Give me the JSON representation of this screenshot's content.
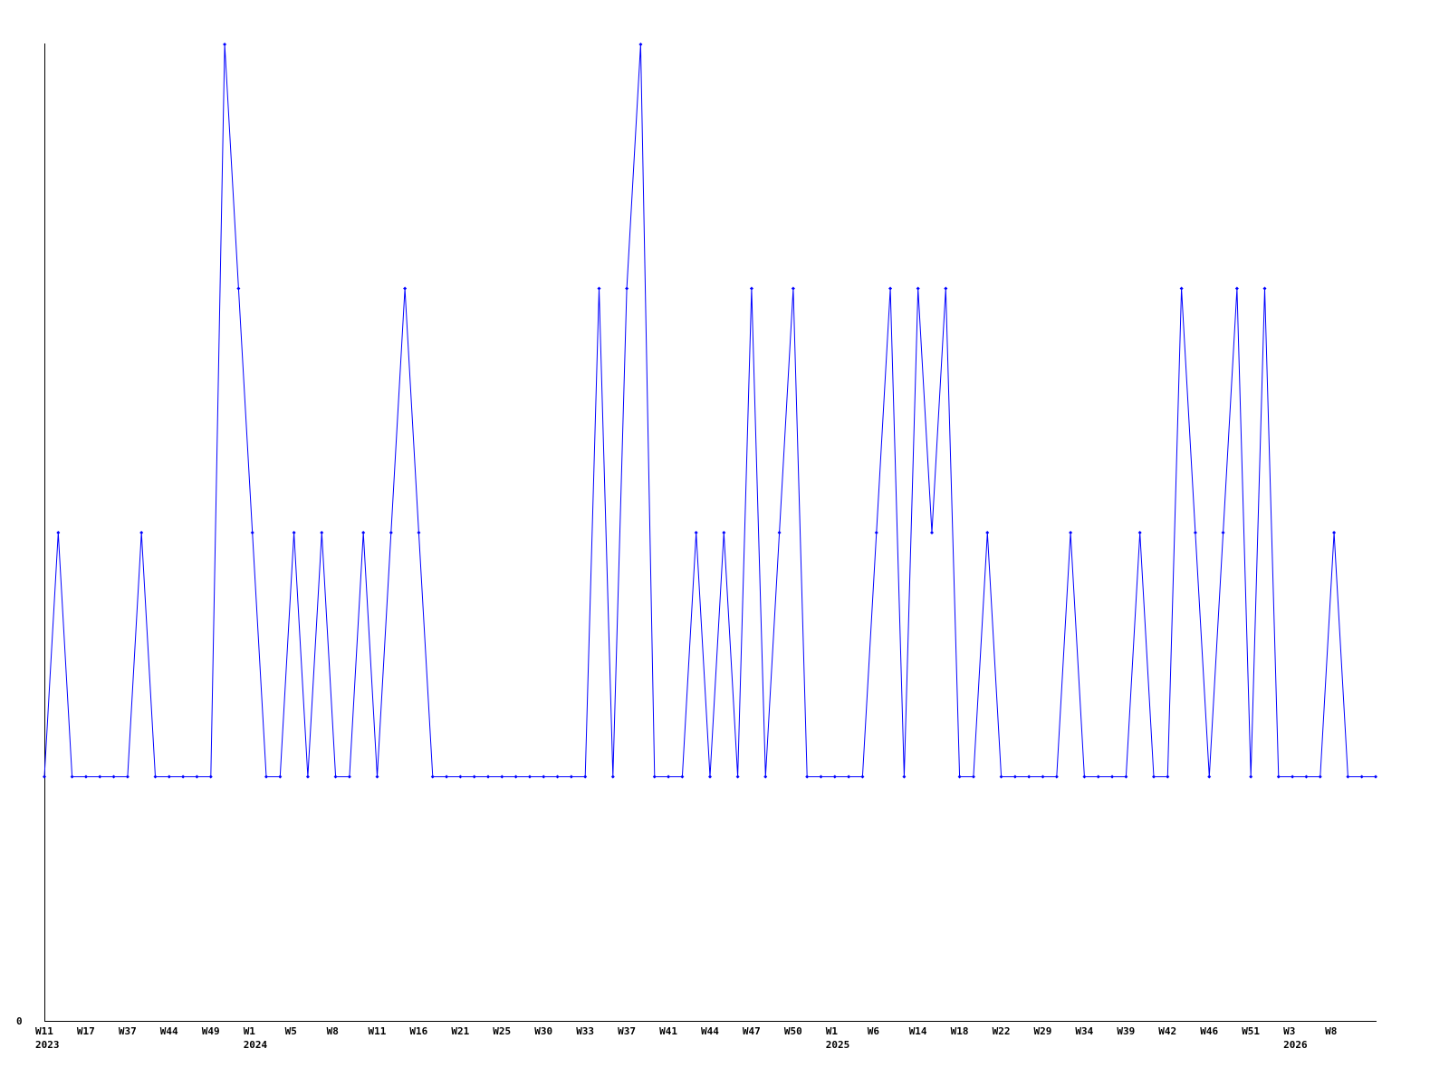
{
  "chart_data": {
    "type": "line",
    "title": "",
    "xlabel": "",
    "ylabel": "",
    "ylim": [
      0,
      4
    ],
    "y_tick_labels": [
      "0"
    ],
    "grid": false,
    "line_color": "#0000ff",
    "axis_color": "#000000",
    "tick_label_every": 3,
    "x_tick_labels": [
      "W11",
      "W17",
      "W37",
      "W44",
      "W49",
      "W1",
      "W5",
      "W8",
      "W11",
      "W16",
      "W21",
      "W25",
      "W30",
      "W33",
      "W37",
      "W41",
      "W44",
      "W47",
      "W50",
      "W1",
      "W6",
      "W14",
      "W18",
      "W22",
      "W29",
      "W34",
      "W39",
      "W42",
      "W46",
      "W51",
      "W3",
      "W8"
    ],
    "year_labels": [
      {
        "label": "2023",
        "tick": 0
      },
      {
        "label": "2024",
        "tick": 5
      },
      {
        "label": "2025",
        "tick": 19
      },
      {
        "label": "2026",
        "tick": 30
      }
    ],
    "values": [
      1,
      2,
      1,
      1,
      1,
      1,
      1,
      2,
      1,
      1,
      1,
      1,
      1,
      4,
      3,
      2,
      1,
      1,
      2,
      1,
      2,
      1,
      1,
      2,
      1,
      2,
      3,
      2,
      1,
      1,
      1,
      1,
      1,
      1,
      1,
      1,
      1,
      1,
      1,
      1,
      3,
      1,
      3,
      4,
      1,
      1,
      1,
      2,
      1,
      2,
      1,
      3,
      1,
      2,
      3,
      1,
      1,
      1,
      1,
      1,
      2,
      3,
      1,
      3,
      2,
      3,
      1,
      1,
      2,
      1,
      1,
      1,
      1,
      1,
      2,
      1,
      1,
      1,
      1,
      2,
      1,
      1,
      3,
      2,
      1,
      2,
      3,
      1,
      3,
      1,
      1,
      1,
      1,
      2,
      1,
      1,
      1
    ]
  }
}
